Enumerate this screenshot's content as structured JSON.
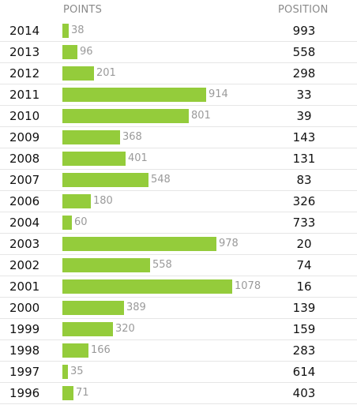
{
  "header": {
    "points_label": "POINTS",
    "position_label": "POSITION"
  },
  "colors": {
    "bar": "#94cc3b",
    "value_text": "#9a9a9a",
    "header_text": "#8a8a8a",
    "row_divider": "#e6e6e6"
  },
  "chart_data": {
    "type": "bar",
    "orientation": "horizontal",
    "categories": [
      "2014",
      "2013",
      "2012",
      "2011",
      "2010",
      "2009",
      "2008",
      "2007",
      "2006",
      "2004",
      "2003",
      "2002",
      "2001",
      "2000",
      "1999",
      "1998",
      "1997",
      "1996"
    ],
    "series": [
      {
        "name": "POINTS",
        "values": [
          38,
          96,
          201,
          914,
          801,
          368,
          401,
          548,
          180,
          60,
          978,
          558,
          1078,
          389,
          320,
          166,
          35,
          71
        ]
      }
    ],
    "positions": [
      993,
      558,
      298,
      33,
      39,
      143,
      131,
      83,
      326,
      733,
      20,
      74,
      16,
      139,
      159,
      283,
      614,
      403
    ],
    "xlim": [
      0,
      1078
    ],
    "grid": false
  }
}
